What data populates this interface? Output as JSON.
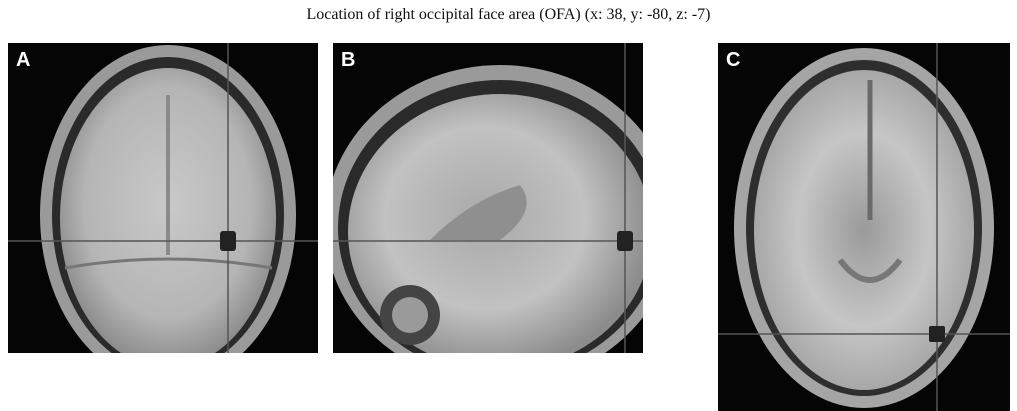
{
  "title": "Location of right occipital face area (OFA) (x: 38, y: -80, z: -7)",
  "panels": [
    {
      "label": "A"
    },
    {
      "label": "B"
    },
    {
      "label": "C"
    }
  ]
}
